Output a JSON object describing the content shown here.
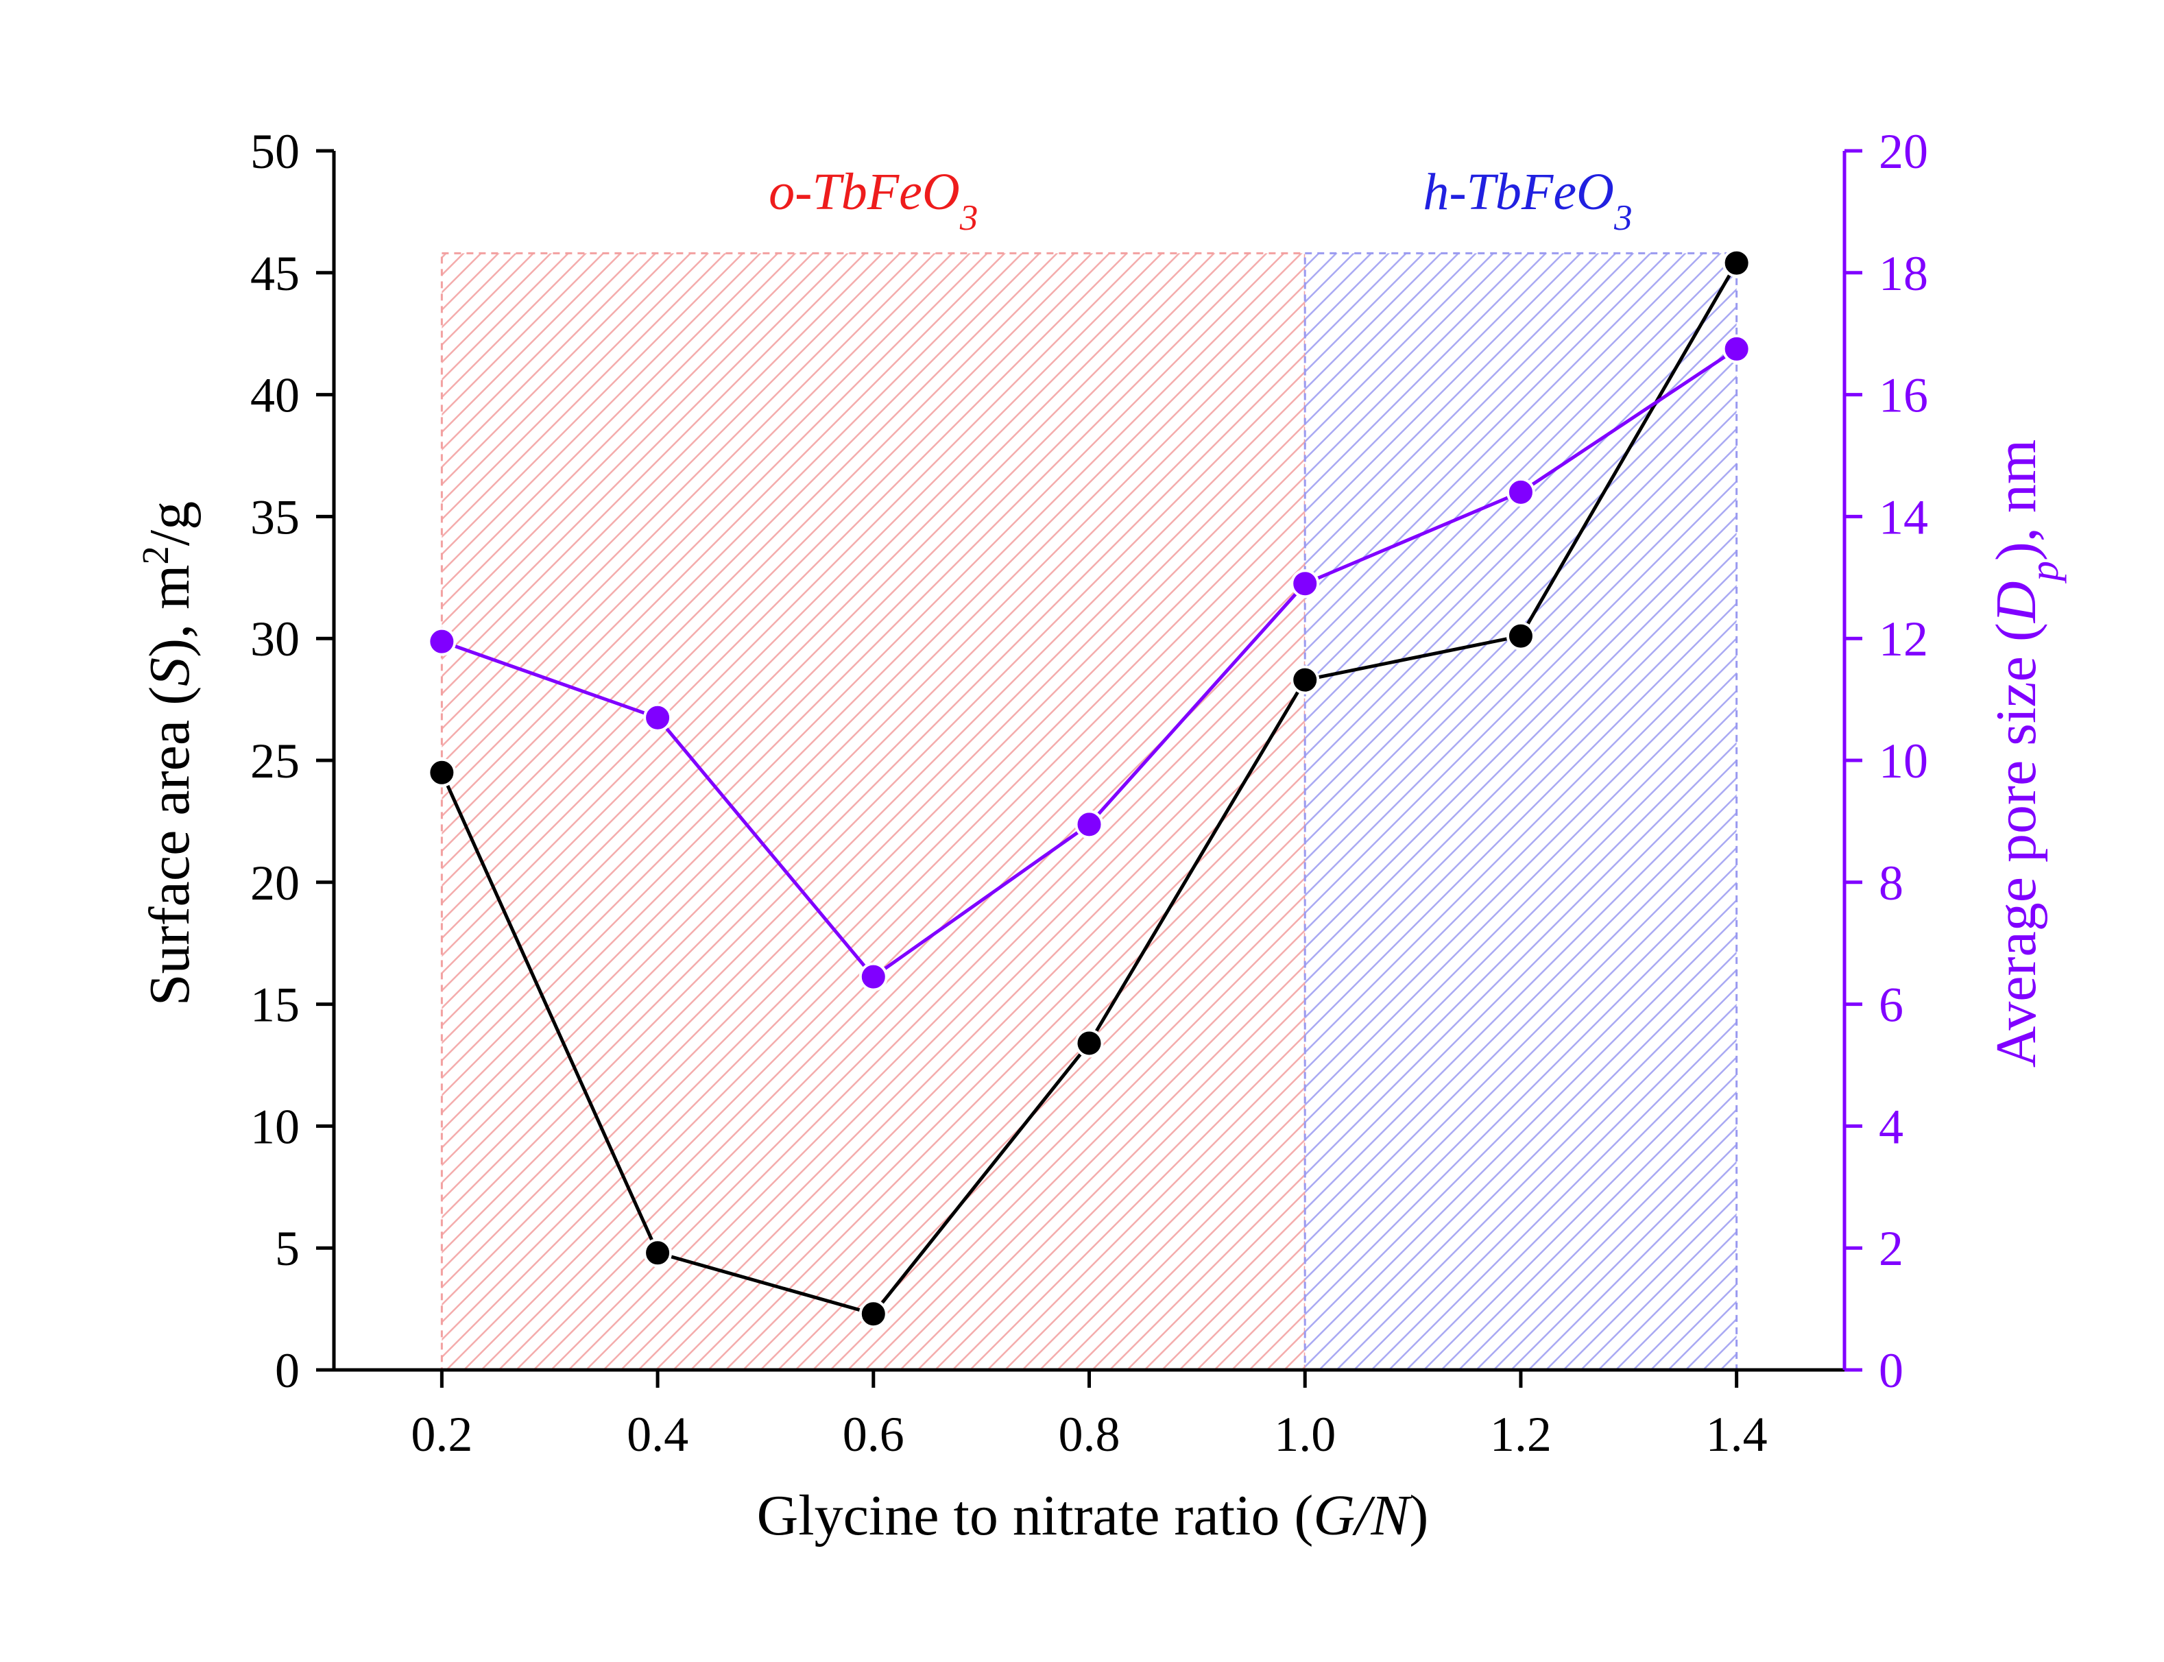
{
  "chart_data": {
    "type": "line",
    "x": [
      0.2,
      0.4,
      0.6,
      0.8,
      1.0,
      1.2,
      1.4
    ],
    "xlabel": {
      "pre": "Glycine to nitrate ratio (",
      "it": "G/N",
      "post": ")"
    },
    "xlim": [
      0.1,
      1.5
    ],
    "xticks": [
      "0.2",
      "0.4",
      "0.6",
      "0.8",
      "1.0",
      "1.2",
      "1.4"
    ],
    "y_left": {
      "label": {
        "pre": "Surface area (",
        "it": "S",
        "mid": "), m",
        "sup": "2",
        "post": "/g"
      },
      "lim": [
        0,
        50
      ],
      "ticks": [
        "0",
        "5",
        "10",
        "15",
        "20",
        "25",
        "30",
        "35",
        "40",
        "45",
        "50"
      ]
    },
    "y_right": {
      "label": {
        "pre": "Average pore size (",
        "it": "D",
        "sub": "p",
        "post": "), nm"
      },
      "lim": [
        0,
        20
      ],
      "ticks": [
        "0",
        "2",
        "4",
        "6",
        "8",
        "10",
        "12",
        "14",
        "16",
        "18",
        "20"
      ]
    },
    "series": [
      {
        "name": "Surface area",
        "axis": "left",
        "color": "#000000",
        "values": [
          24.5,
          4.8,
          2.3,
          13.4,
          28.3,
          30.1,
          45.4
        ]
      },
      {
        "name": "Average pore size",
        "axis": "right",
        "color": "#8000ff",
        "values": [
          11.95,
          10.7,
          6.45,
          8.95,
          12.9,
          14.4,
          16.75
        ]
      }
    ],
    "regions": [
      {
        "label_italic": "o-TbFeO",
        "label_sub": "3",
        "x_range": [
          0.2,
          1.0
        ],
        "y_top": 45.8,
        "color": "#f08080",
        "hatch": "#f2a0a0"
      },
      {
        "label_italic": "h-TbFeO",
        "label_sub": "3",
        "x_range": [
          1.0,
          1.4
        ],
        "y_top": 45.8,
        "color": "#3333e6",
        "hatch": "#9a9af0"
      }
    ],
    "colors": {
      "left_axis": "#000000",
      "right_axis": "#8000ff",
      "region_o": "#ee1c1c",
      "region_h": "#2020e0"
    }
  }
}
